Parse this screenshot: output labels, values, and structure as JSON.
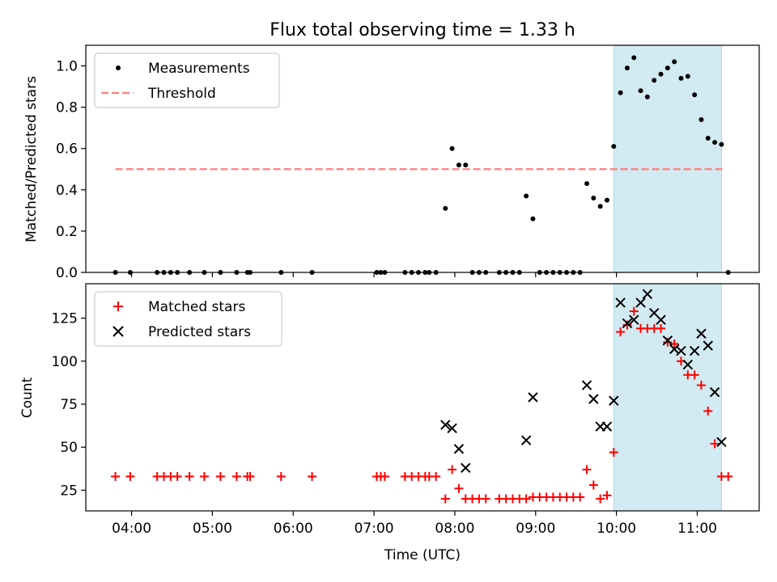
{
  "figure": {
    "title": "Flux total observing time = 1.33 h",
    "xlabel": "Time (UTC)",
    "x_ticks": [
      "04:00",
      "05:00",
      "06:00",
      "07:00",
      "08:00",
      "09:00",
      "10:00",
      "11:00"
    ]
  },
  "chart_data": [
    {
      "type": "scatter",
      "ylabel": "Matched/Predicted stars",
      "ylim": [
        0,
        1.1
      ],
      "yticks": [
        "0.0",
        "0.2",
        "0.4",
        "0.6",
        "0.8",
        "1.0"
      ],
      "xlim": [
        "03:26",
        "11:46"
      ],
      "legend": {
        "placement": "top-left",
        "entries": [
          "Measurements",
          "Threshold"
        ]
      },
      "highlight_span": {
        "from": "09:58",
        "to": "11:18",
        "color": "#add8e6"
      },
      "threshold": {
        "name": "Threshold",
        "value": 0.5,
        "from": "03:48",
        "to": "11:20",
        "color": "#ff7f7f"
      },
      "series": [
        {
          "name": "Measurements",
          "color": "#000000",
          "points": [
            [
              "03:48",
              0
            ],
            [
              "03:59",
              0
            ],
            [
              "04:19",
              0
            ],
            [
              "04:24",
              0
            ],
            [
              "04:29",
              0
            ],
            [
              "04:34",
              0
            ],
            [
              "04:43",
              0
            ],
            [
              "04:54",
              0
            ],
            [
              "05:06",
              0
            ],
            [
              "05:18",
              0
            ],
            [
              "05:26",
              0
            ],
            [
              "05:28",
              0
            ],
            [
              "05:51",
              0
            ],
            [
              "06:14",
              0
            ],
            [
              "07:02",
              0
            ],
            [
              "07:05",
              0
            ],
            [
              "07:08",
              0
            ],
            [
              "07:23",
              0
            ],
            [
              "07:28",
              0
            ],
            [
              "07:33",
              0
            ],
            [
              "07:38",
              0
            ],
            [
              "07:41",
              0
            ],
            [
              "07:46",
              0
            ],
            [
              "07:53",
              0.31
            ],
            [
              "07:58",
              0.6
            ],
            [
              "08:03",
              0.52
            ],
            [
              "08:08",
              0.52
            ],
            [
              "08:13",
              0
            ],
            [
              "08:18",
              0
            ],
            [
              "08:23",
              0
            ],
            [
              "08:33",
              0
            ],
            [
              "08:38",
              0
            ],
            [
              "08:43",
              0
            ],
            [
              "08:48",
              0
            ],
            [
              "08:53",
              0.37
            ],
            [
              "08:58",
              0.26
            ],
            [
              "09:03",
              0
            ],
            [
              "09:08",
              0
            ],
            [
              "09:13",
              0
            ],
            [
              "09:18",
              0
            ],
            [
              "09:23",
              0
            ],
            [
              "09:28",
              0
            ],
            [
              "09:33",
              0
            ],
            [
              "09:38",
              0.43
            ],
            [
              "09:43",
              0.36
            ],
            [
              "09:48",
              0.32
            ],
            [
              "09:53",
              0.35
            ],
            [
              "09:58",
              0.61
            ],
            [
              "10:03",
              0.87
            ],
            [
              "10:08",
              0.99
            ],
            [
              "10:13",
              1.04
            ],
            [
              "10:18",
              0.88
            ],
            [
              "10:23",
              0.85
            ],
            [
              "10:28",
              0.93
            ],
            [
              "10:33",
              0.96
            ],
            [
              "10:38",
              0.99
            ],
            [
              "10:43",
              1.02
            ],
            [
              "10:48",
              0.94
            ],
            [
              "10:53",
              0.95
            ],
            [
              "10:58",
              0.86
            ],
            [
              "11:03",
              0.74
            ],
            [
              "11:08",
              0.65
            ],
            [
              "11:13",
              0.63
            ],
            [
              "11:18",
              0.62
            ],
            [
              "11:23",
              0
            ]
          ]
        }
      ]
    },
    {
      "type": "scatter",
      "ylabel": "Count",
      "ylim": [
        13,
        145
      ],
      "yticks": [
        "25",
        "50",
        "75",
        "100",
        "125"
      ],
      "xlim": [
        "03:26",
        "11:46"
      ],
      "legend": {
        "placement": "top-left",
        "entries": [
          "Matched stars",
          "Predicted stars"
        ]
      },
      "highlight_span": {
        "from": "09:58",
        "to": "11:18",
        "color": "#add8e6"
      },
      "series": [
        {
          "name": "Matched stars",
          "marker": "plus",
          "color": "#ff0000",
          "points": [
            [
              "03:48",
              33
            ],
            [
              "03:59",
              33
            ],
            [
              "04:19",
              33
            ],
            [
              "04:24",
              33
            ],
            [
              "04:29",
              33
            ],
            [
              "04:34",
              33
            ],
            [
              "04:43",
              33
            ],
            [
              "04:54",
              33
            ],
            [
              "05:06",
              33
            ],
            [
              "05:18",
              33
            ],
            [
              "05:26",
              33
            ],
            [
              "05:28",
              33
            ],
            [
              "05:51",
              33
            ],
            [
              "06:14",
              33
            ],
            [
              "07:02",
              33
            ],
            [
              "07:05",
              33
            ],
            [
              "07:08",
              33
            ],
            [
              "07:23",
              33
            ],
            [
              "07:28",
              33
            ],
            [
              "07:33",
              33
            ],
            [
              "07:38",
              33
            ],
            [
              "07:41",
              33
            ],
            [
              "07:46",
              33
            ],
            [
              "07:53",
              20
            ],
            [
              "07:58",
              37
            ],
            [
              "08:03",
              26
            ],
            [
              "08:08",
              20
            ],
            [
              "08:13",
              20
            ],
            [
              "08:18",
              20
            ],
            [
              "08:23",
              20
            ],
            [
              "08:33",
              20
            ],
            [
              "08:38",
              20
            ],
            [
              "08:43",
              20
            ],
            [
              "08:48",
              20
            ],
            [
              "08:53",
              20
            ],
            [
              "08:58",
              21
            ],
            [
              "09:03",
              21
            ],
            [
              "09:08",
              21
            ],
            [
              "09:13",
              21
            ],
            [
              "09:18",
              21
            ],
            [
              "09:23",
              21
            ],
            [
              "09:28",
              21
            ],
            [
              "09:33",
              21
            ],
            [
              "09:38",
              37
            ],
            [
              "09:43",
              28
            ],
            [
              "09:48",
              20
            ],
            [
              "09:53",
              22
            ],
            [
              "09:58",
              47
            ],
            [
              "10:03",
              117
            ],
            [
              "10:08",
              121
            ],
            [
              "10:13",
              129
            ],
            [
              "10:18",
              119
            ],
            [
              "10:23",
              119
            ],
            [
              "10:28",
              119
            ],
            [
              "10:33",
              119
            ],
            [
              "10:38",
              111
            ],
            [
              "10:43",
              110
            ],
            [
              "10:48",
              100
            ],
            [
              "10:53",
              92
            ],
            [
              "10:58",
              92
            ],
            [
              "11:03",
              86
            ],
            [
              "11:08",
              71
            ],
            [
              "11:13",
              52
            ],
            [
              "11:18",
              33
            ],
            [
              "11:23",
              33
            ]
          ]
        },
        {
          "name": "Predicted stars",
          "marker": "x",
          "color": "#000000",
          "points": [
            [
              "07:53",
              63
            ],
            [
              "07:58",
              61
            ],
            [
              "08:03",
              49
            ],
            [
              "08:08",
              38
            ],
            [
              "08:53",
              54
            ],
            [
              "08:58",
              79
            ],
            [
              "09:38",
              86
            ],
            [
              "09:43",
              78
            ],
            [
              "09:48",
              62
            ],
            [
              "09:53",
              62
            ],
            [
              "09:58",
              77
            ],
            [
              "10:03",
              134
            ],
            [
              "10:08",
              122
            ],
            [
              "10:13",
              124
            ],
            [
              "10:18",
              134
            ],
            [
              "10:23",
              139
            ],
            [
              "10:28",
              128
            ],
            [
              "10:33",
              124
            ],
            [
              "10:38",
              112
            ],
            [
              "10:43",
              107
            ],
            [
              "10:48",
              106
            ],
            [
              "10:53",
              98
            ],
            [
              "10:58",
              106
            ],
            [
              "11:03",
              116
            ],
            [
              "11:08",
              109
            ],
            [
              "11:13",
              82
            ],
            [
              "11:18",
              53
            ]
          ]
        }
      ]
    }
  ]
}
